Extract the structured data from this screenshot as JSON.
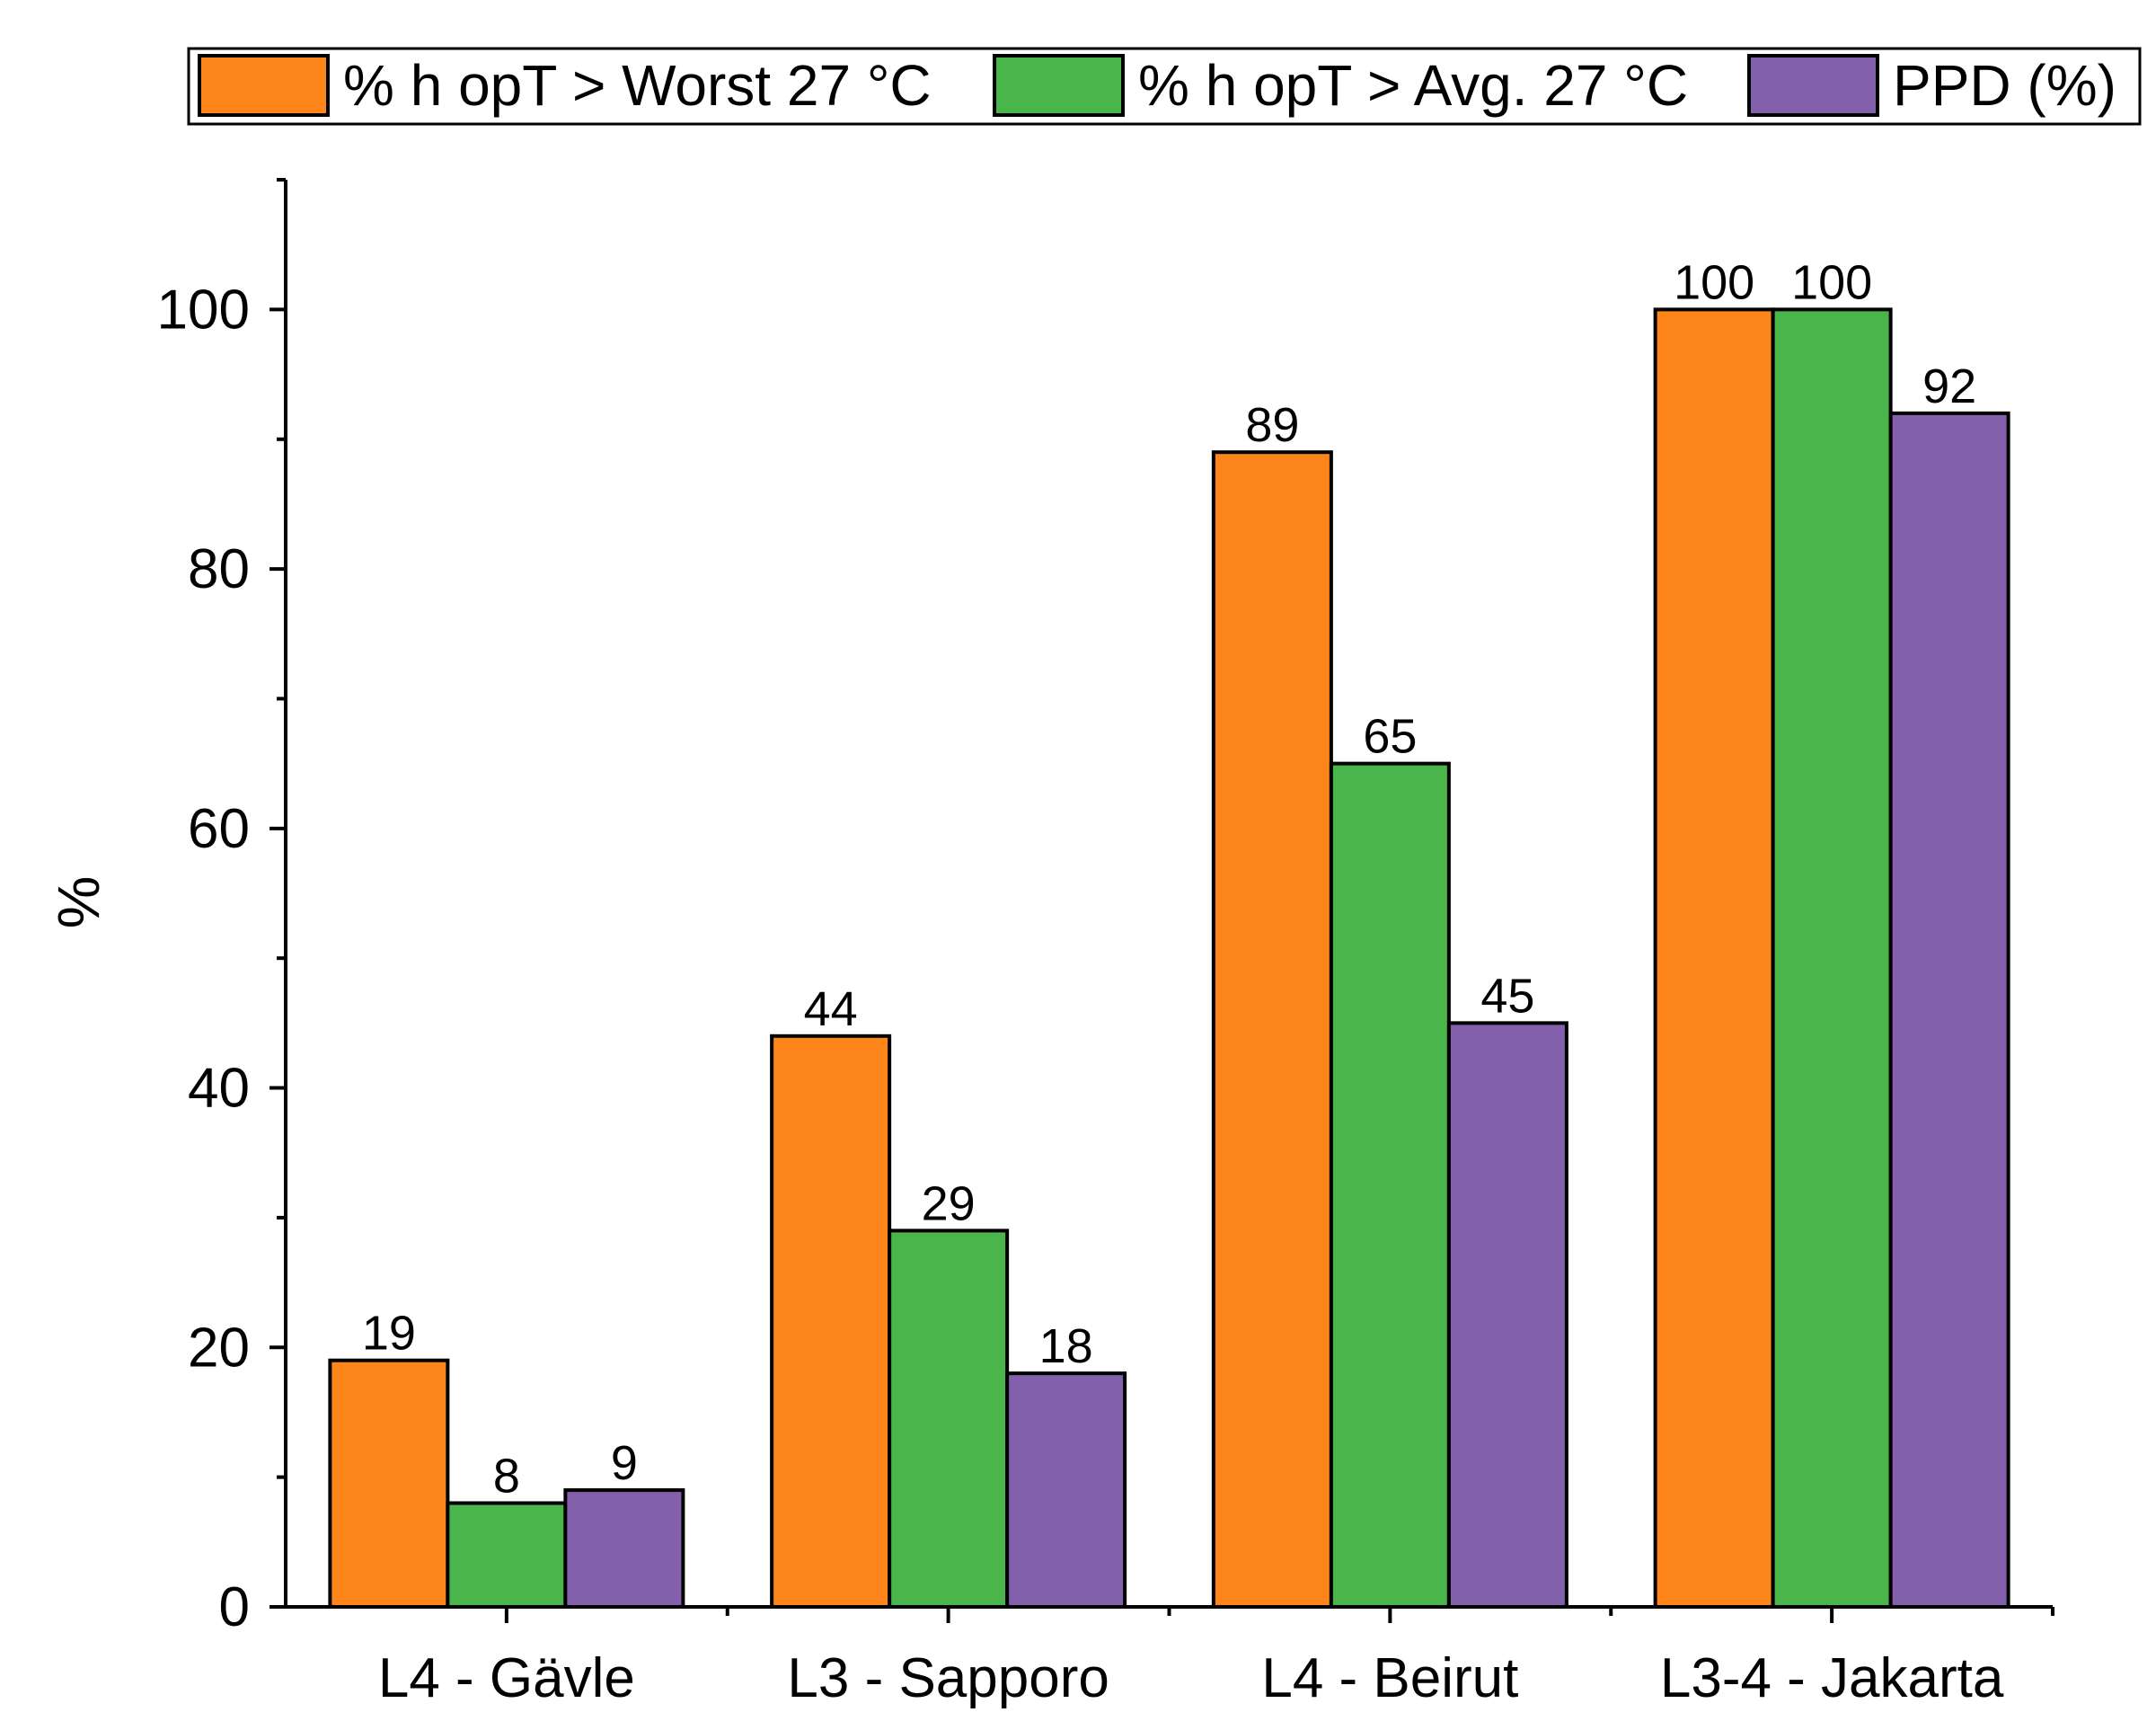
{
  "chart_data": {
    "type": "bar",
    "title": "",
    "xlabel": "",
    "ylabel": "%",
    "ylim": [
      0,
      110
    ],
    "yticks": [
      0,
      20,
      40,
      60,
      80,
      100
    ],
    "yminor_step": 10,
    "categories": [
      "L4 - Gävle",
      "L3 - Sapporo",
      "L4 - Beirut",
      "L3-4 - Jakarta"
    ],
    "series": [
      {
        "name": "% h opT > Worst 27 °C",
        "color": "#fd8519",
        "values": [
          19,
          44,
          89,
          100
        ]
      },
      {
        "name": "% h opT > Avg. 27 °C",
        "color": "#4ab54a",
        "values": [
          8,
          29,
          65,
          100
        ]
      },
      {
        "name": "PPD (%)",
        "color": "#8360ab",
        "values": [
          9,
          18,
          45,
          92
        ]
      }
    ],
    "legend_position": "top",
    "grid": false
  }
}
